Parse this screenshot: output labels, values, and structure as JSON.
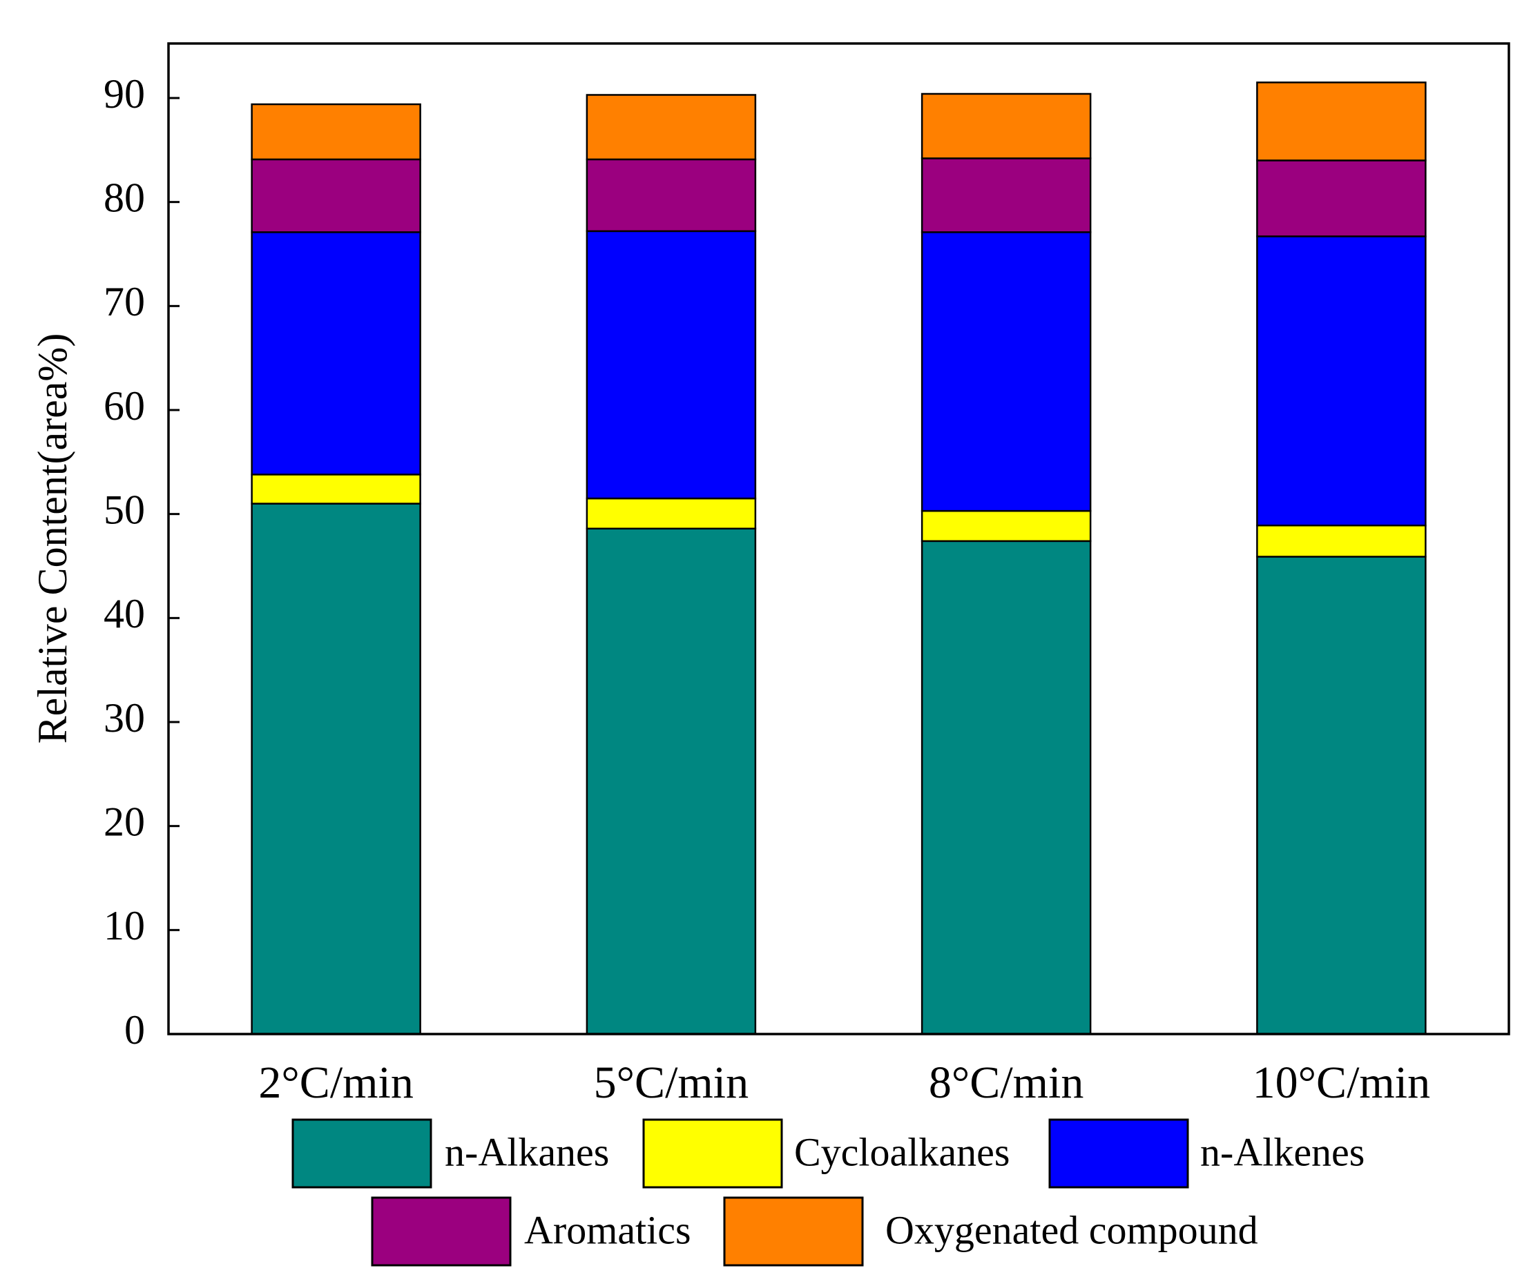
{
  "chart_data": {
    "type": "bar",
    "stacked": true,
    "title": "",
    "xlabel": "",
    "ylabel": "Relative Content(area%)",
    "ylim": [
      0,
      95
    ],
    "yticks": [
      0,
      10,
      20,
      30,
      40,
      50,
      60,
      70,
      80,
      90
    ],
    "grid": false,
    "legend_position": "bottom",
    "categories": [
      "2°C/min",
      "5°C/min",
      "8°C/min",
      "10°C/min"
    ],
    "series": [
      {
        "name": "n-Alkanes",
        "color": "#008781",
        "values": [
          51.0,
          48.6,
          47.4,
          45.9
        ]
      },
      {
        "name": "Cycloalkanes",
        "color": "#FFFF00",
        "values": [
          2.8,
          2.9,
          2.9,
          3.0
        ]
      },
      {
        "name": "n-Alkenes",
        "color": "#0000FF",
        "values": [
          23.3,
          25.7,
          26.8,
          27.8
        ]
      },
      {
        "name": "Aromatics",
        "color": "#9B007F",
        "values": [
          7.0,
          6.9,
          7.1,
          7.3
        ]
      },
      {
        "name": "Oxygenated compound",
        "color": "#FF8000",
        "values": [
          5.3,
          6.2,
          6.2,
          7.5
        ]
      }
    ]
  }
}
